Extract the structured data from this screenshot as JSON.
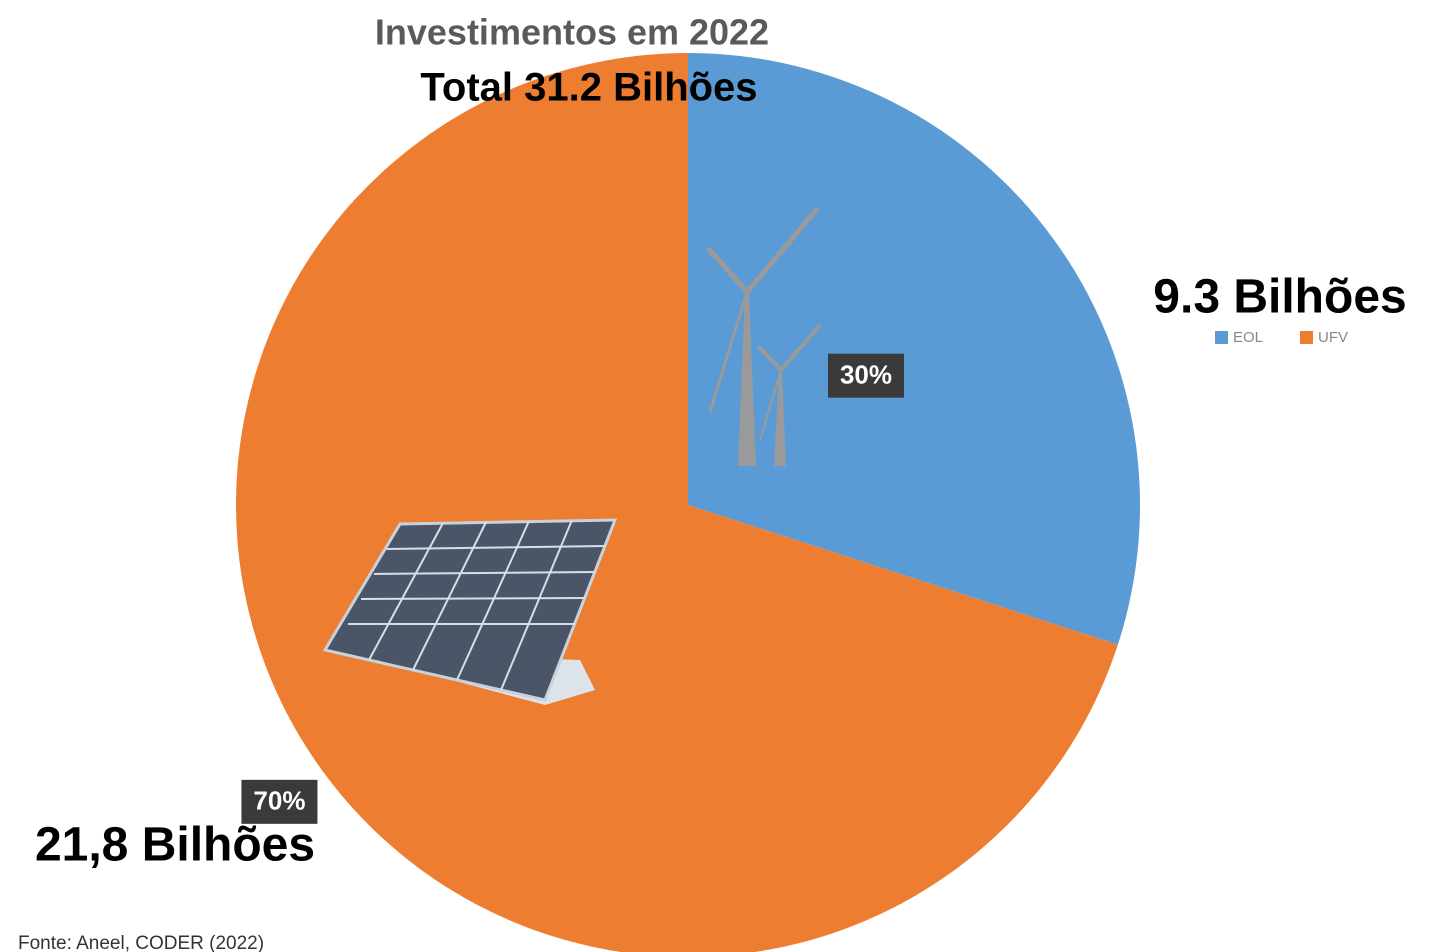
{
  "chart_data": {
    "type": "pie",
    "title": "Investimentos em 2022",
    "categories": [
      "EOL",
      "UFV"
    ],
    "values": [
      30,
      70
    ],
    "value_labels": [
      "30%",
      "70%"
    ],
    "colors": [
      "#5b9bd5",
      "#ed7d31"
    ],
    "annotations": [
      "Total 31.2 Bilhões",
      "9.3 Bilhões",
      "21,8 Bilhões"
    ],
    "source": "Fonte: Aneel, CODER (2022)"
  }
}
